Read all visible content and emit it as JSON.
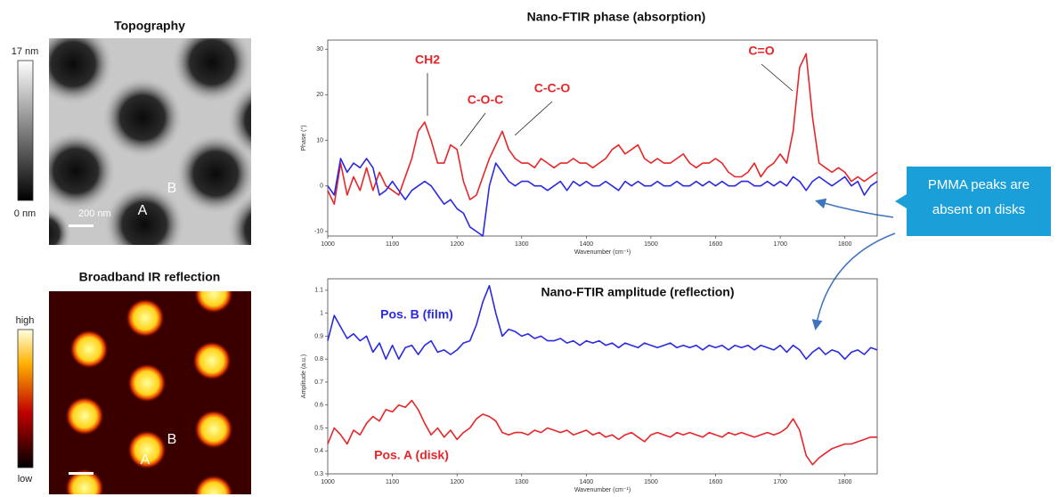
{
  "topography": {
    "title": "Topography",
    "colorbar_max": "17 nm",
    "colorbar_min": "0 nm",
    "scale": "200 nm",
    "point_a": "A",
    "point_b": "B"
  },
  "ir_image": {
    "title": "Broadband IR reflection",
    "colorbar_max": "high",
    "colorbar_min": "low",
    "point_a": "A",
    "point_b": "B"
  },
  "callout": "PMMA peaks are absent on disks",
  "chart_data": [
    {
      "type": "line",
      "title": "Nano-FTIR phase (absorption)",
      "x_label": "Wavenumber (cm⁻¹)",
      "y_label": "Phase (°)",
      "xlim": [
        1000,
        1850
      ],
      "xticks": [
        1000,
        1100,
        1200,
        1300,
        1400,
        1500,
        1600,
        1700,
        1800
      ],
      "ylim": [
        -11,
        32
      ],
      "yticks": [
        -10,
        0,
        10,
        20,
        30
      ],
      "annotations": [
        "CH2",
        "C-O-C",
        "C-C-O",
        "C=O"
      ],
      "x": [
        1000,
        1010,
        1020,
        1030,
        1040,
        1050,
        1060,
        1070,
        1080,
        1090,
        1100,
        1110,
        1120,
        1130,
        1140,
        1150,
        1160,
        1170,
        1180,
        1190,
        1200,
        1210,
        1220,
        1230,
        1240,
        1250,
        1260,
        1270,
        1280,
        1290,
        1300,
        1310,
        1320,
        1330,
        1340,
        1350,
        1360,
        1370,
        1380,
        1390,
        1400,
        1410,
        1420,
        1430,
        1440,
        1450,
        1460,
        1470,
        1480,
        1490,
        1500,
        1510,
        1520,
        1530,
        1540,
        1550,
        1560,
        1570,
        1580,
        1590,
        1600,
        1610,
        1620,
        1630,
        1640,
        1650,
        1660,
        1670,
        1680,
        1690,
        1700,
        1710,
        1720,
        1730,
        1740,
        1750,
        1760,
        1770,
        1780,
        1790,
        1800,
        1810,
        1820,
        1830,
        1840,
        1850
      ],
      "series": [
        {
          "color": "#e8262a",
          "values": [
            -1,
            -4,
            5,
            -2,
            2,
            -1,
            4,
            -1,
            3,
            0,
            -1,
            -2,
            2,
            6,
            12,
            14,
            10,
            5,
            5,
            9,
            8,
            1,
            -3,
            -2,
            2,
            6,
            9,
            12,
            8,
            6,
            5,
            5,
            4,
            6,
            5,
            4,
            5,
            5,
            6,
            5,
            5,
            4,
            5,
            6,
            8,
            9,
            7,
            8,
            9,
            6,
            5,
            6,
            5,
            5,
            6,
            7,
            5,
            4,
            5,
            5,
            6,
            5,
            3,
            2,
            2,
            3,
            5,
            2,
            4,
            5,
            7,
            5,
            12,
            26,
            29,
            15,
            5,
            4,
            3,
            4,
            3,
            1,
            2,
            1,
            2,
            3
          ]
        },
        {
          "color": "#2a2ae0",
          "values": [
            0,
            -2,
            6,
            3,
            5,
            4,
            6,
            4,
            -2,
            -1,
            1,
            -1,
            -3,
            -1,
            0,
            1,
            0,
            -2,
            -4,
            -3,
            -5,
            -6,
            -9,
            -10,
            -11,
            0,
            5,
            3,
            1,
            0,
            1,
            1,
            0,
            0,
            -1,
            0,
            1,
            -1,
            1,
            0,
            1,
            0,
            0,
            1,
            0,
            -1,
            1,
            0,
            1,
            0,
            0,
            1,
            0,
            0,
            1,
            0,
            0,
            1,
            0,
            1,
            0,
            1,
            0,
            0,
            1,
            1,
            0,
            0,
            1,
            0,
            1,
            0,
            2,
            1,
            -1,
            1,
            2,
            1,
            0,
            1,
            2,
            0,
            1,
            -2,
            0,
            1
          ]
        }
      ]
    },
    {
      "type": "line",
      "title": "Nano-FTIR amplitude (reflection)",
      "x_label": "Wavenumber (cm⁻¹)",
      "y_label": "Amplitude (a.u.)",
      "xlim": [
        1000,
        1850
      ],
      "xticks": [
        1000,
        1100,
        1200,
        1300,
        1400,
        1500,
        1600,
        1700,
        1800
      ],
      "ylim": [
        0.3,
        1.15
      ],
      "yticks": [
        0.3,
        0.4,
        0.5,
        0.6,
        0.7,
        0.8,
        0.9,
        1.0,
        1.1
      ],
      "x": [
        1000,
        1010,
        1020,
        1030,
        1040,
        1050,
        1060,
        1070,
        1080,
        1090,
        1100,
        1110,
        1120,
        1130,
        1140,
        1150,
        1160,
        1170,
        1180,
        1190,
        1200,
        1210,
        1220,
        1230,
        1240,
        1250,
        1260,
        1270,
        1280,
        1290,
        1300,
        1310,
        1320,
        1330,
        1340,
        1350,
        1360,
        1370,
        1380,
        1390,
        1400,
        1410,
        1420,
        1430,
        1440,
        1450,
        1460,
        1470,
        1480,
        1490,
        1500,
        1510,
        1520,
        1530,
        1540,
        1550,
        1560,
        1570,
        1580,
        1590,
        1600,
        1610,
        1620,
        1630,
        1640,
        1650,
        1660,
        1670,
        1680,
        1690,
        1700,
        1710,
        1720,
        1730,
        1740,
        1750,
        1760,
        1770,
        1780,
        1790,
        1800,
        1810,
        1820,
        1830,
        1840,
        1850
      ],
      "series": [
        {
          "name": "Pos. B (film)",
          "color": "#2a2ae0",
          "values": [
            0.88,
            0.99,
            0.94,
            0.89,
            0.91,
            0.88,
            0.9,
            0.83,
            0.87,
            0.8,
            0.86,
            0.8,
            0.85,
            0.86,
            0.82,
            0.86,
            0.88,
            0.83,
            0.84,
            0.82,
            0.84,
            0.87,
            0.88,
            0.95,
            1.05,
            1.12,
            1.0,
            0.9,
            0.93,
            0.92,
            0.9,
            0.91,
            0.89,
            0.9,
            0.88,
            0.88,
            0.89,
            0.87,
            0.88,
            0.86,
            0.88,
            0.87,
            0.88,
            0.86,
            0.87,
            0.85,
            0.87,
            0.86,
            0.85,
            0.87,
            0.86,
            0.85,
            0.86,
            0.87,
            0.85,
            0.86,
            0.85,
            0.86,
            0.84,
            0.86,
            0.85,
            0.86,
            0.84,
            0.86,
            0.85,
            0.86,
            0.84,
            0.86,
            0.85,
            0.84,
            0.86,
            0.83,
            0.86,
            0.84,
            0.8,
            0.83,
            0.85,
            0.82,
            0.84,
            0.83,
            0.8,
            0.83,
            0.84,
            0.82,
            0.85,
            0.84
          ]
        },
        {
          "name": "Pos. A (disk)",
          "color": "#e8262a",
          "values": [
            0.43,
            0.5,
            0.47,
            0.43,
            0.49,
            0.47,
            0.52,
            0.55,
            0.53,
            0.58,
            0.57,
            0.6,
            0.59,
            0.62,
            0.58,
            0.52,
            0.47,
            0.5,
            0.46,
            0.49,
            0.45,
            0.48,
            0.5,
            0.54,
            0.56,
            0.55,
            0.53,
            0.48,
            0.47,
            0.48,
            0.48,
            0.47,
            0.49,
            0.48,
            0.5,
            0.49,
            0.48,
            0.49,
            0.47,
            0.48,
            0.49,
            0.47,
            0.48,
            0.46,
            0.47,
            0.45,
            0.47,
            0.48,
            0.46,
            0.44,
            0.47,
            0.48,
            0.47,
            0.46,
            0.48,
            0.47,
            0.48,
            0.47,
            0.46,
            0.48,
            0.47,
            0.46,
            0.48,
            0.47,
            0.48,
            0.47,
            0.46,
            0.47,
            0.48,
            0.47,
            0.48,
            0.5,
            0.54,
            0.49,
            0.38,
            0.34,
            0.37,
            0.39,
            0.41,
            0.42,
            0.43,
            0.43,
            0.44,
            0.45,
            0.46,
            0.46
          ]
        }
      ]
    }
  ]
}
